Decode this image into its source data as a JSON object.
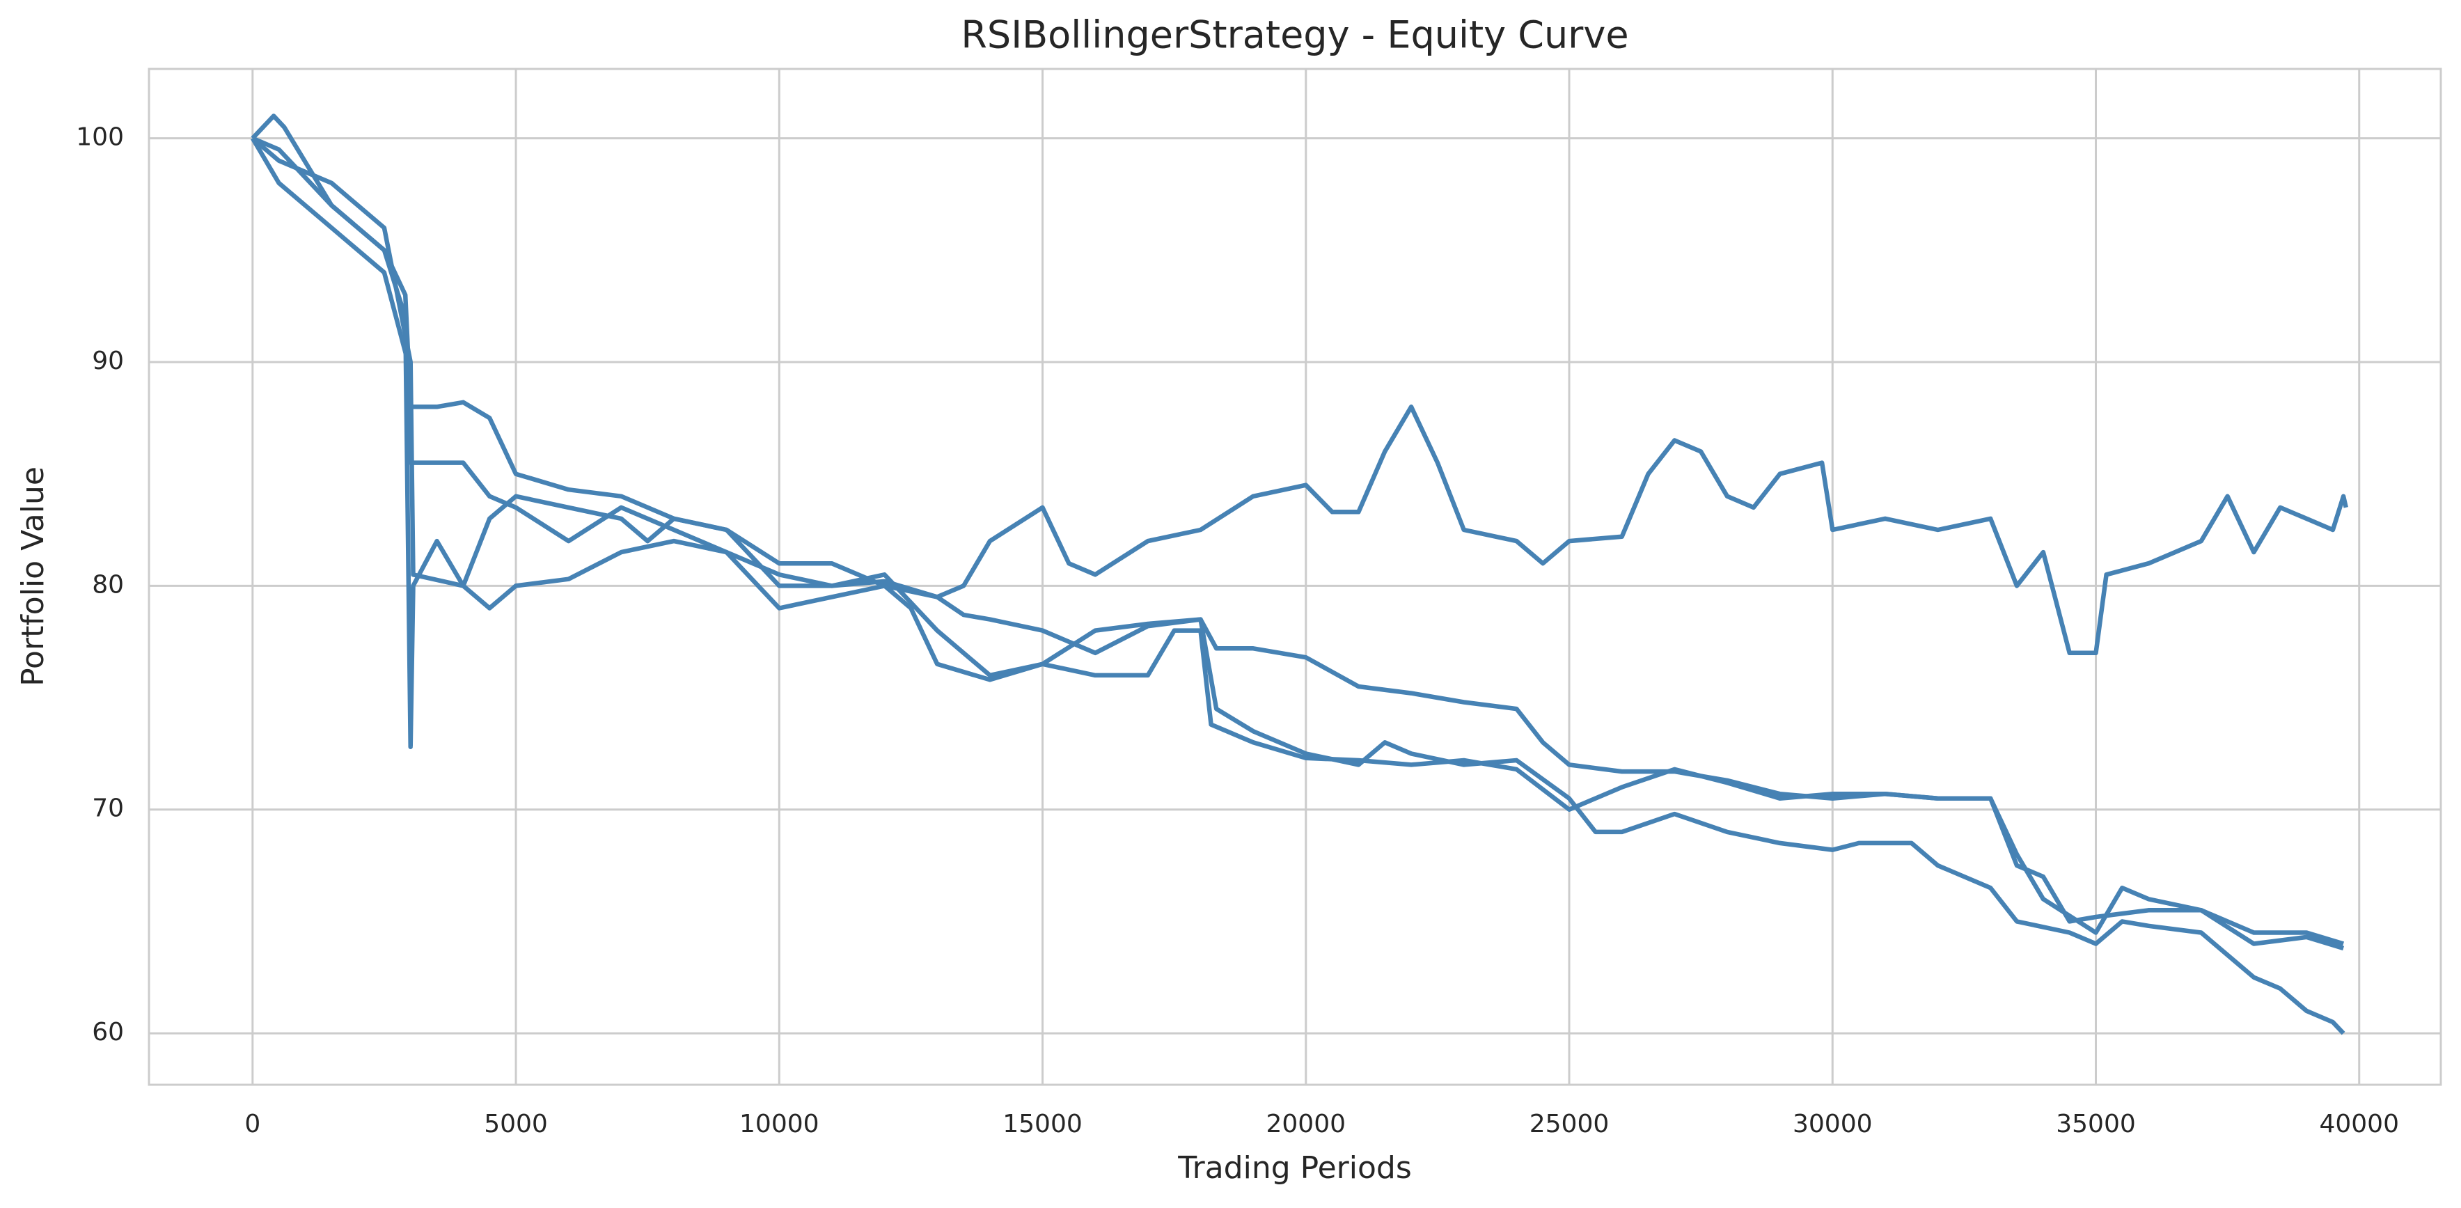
{
  "chart_data": {
    "type": "line",
    "title": "RSIBollingerStrategy - Equity Curve",
    "xlabel": "Trading Periods",
    "ylabel": "Portfolio Value",
    "grid": true,
    "xlim": [
      -1967,
      41550
    ],
    "ylim": [
      57.7,
      103.1
    ],
    "xticks": [
      0,
      5000,
      10000,
      15000,
      20000,
      25000,
      30000,
      35000,
      40000
    ],
    "yticks": [
      60,
      70,
      80,
      90,
      100
    ],
    "series": [
      {
        "color": "#4682b4",
        "x": [
          0,
          500,
          1500,
          2500,
          2900,
          3000,
          3500,
          4000,
          4500,
          5000,
          6000,
          7000,
          8000,
          9000,
          10000,
          11000,
          12000,
          13000,
          13500,
          14000,
          15000,
          15500,
          16000,
          17000,
          18000,
          19000,
          20000,
          20500,
          21000,
          21500,
          22000,
          22500,
          23000,
          24000,
          24500,
          25000,
          26000,
          26500,
          27000,
          27500,
          28000,
          28500,
          29000,
          29800,
          30000,
          31000,
          32000,
          33000,
          33500,
          34000,
          34500,
          35000,
          35200,
          36000,
          37000,
          37500,
          38000,
          38500,
          39000,
          39500,
          39700,
          39750
        ],
        "values": [
          100,
          99.5,
          97,
          95,
          93,
          88,
          88,
          88.2,
          87.5,
          85,
          84.3,
          84,
          83,
          82.5,
          81,
          81,
          80,
          79.5,
          80,
          82,
          83.5,
          81,
          80.5,
          82,
          82.5,
          84,
          84.5,
          83.3,
          83.3,
          86,
          88,
          85.5,
          82.5,
          82,
          81,
          82,
          82.2,
          85,
          86.5,
          86,
          84,
          83.5,
          85,
          85.5,
          82.5,
          83,
          82.5,
          83,
          80,
          81.5,
          77,
          77,
          80.5,
          81,
          82,
          84,
          81.5,
          83.5,
          83,
          82.5,
          84,
          83.5
        ]
      },
      {
        "color": "#4682b4",
        "x": [
          0,
          500,
          1500,
          2500,
          3000,
          3050,
          4000,
          4500,
          5000,
          6000,
          7000,
          8000,
          9000,
          10000,
          11000,
          12000,
          13000,
          13500,
          14000,
          15000,
          16000,
          17000,
          18000,
          18300,
          19000,
          20000,
          21000,
          22000,
          23000,
          24000,
          24500,
          25000,
          26000,
          27000,
          28000,
          29000,
          30000,
          31000,
          32000,
          33000,
          33500,
          34000,
          34500,
          35000,
          36000,
          37000,
          38000,
          39000,
          39700
        ],
        "values": [
          100,
          99,
          98,
          96,
          90,
          80.5,
          80,
          79,
          80,
          80.3,
          81.5,
          82,
          81.5,
          80.5,
          80,
          80.2,
          79.5,
          78.7,
          78.5,
          78,
          77,
          78.2,
          78.5,
          77.2,
          77.2,
          76.8,
          75.5,
          75.2,
          74.8,
          74.5,
          73,
          72,
          71.7,
          71.7,
          71.3,
          70.7,
          70.5,
          70.7,
          70.5,
          70.5,
          67.5,
          67,
          65,
          65.2,
          65.5,
          65.5,
          64.5,
          64.5,
          64
        ]
      },
      {
        "color": "#4682b4",
        "x": [
          0,
          500,
          1500,
          2500,
          2950,
          3000,
          4000,
          4500,
          5000,
          6000,
          7000,
          8000,
          9000,
          10000,
          11000,
          12000,
          12500,
          13000,
          14000,
          15000,
          16000,
          17000,
          18000,
          18300,
          19000,
          20000,
          21000,
          21500,
          22000,
          23000,
          24000,
          25000,
          25500,
          26000,
          27000,
          28000,
          29000,
          30000,
          30500,
          31500,
          32000,
          33000,
          33500,
          34500,
          35000,
          35500,
          36000,
          37000,
          37500,
          38000,
          38500,
          39000,
          39500,
          39700
        ],
        "values": [
          100,
          98,
          96,
          94,
          90,
          85.5,
          85.5,
          84,
          83.5,
          82,
          83.5,
          82.5,
          81.5,
          79,
          79.5,
          80,
          79,
          76.5,
          75.8,
          76.5,
          78,
          78.3,
          78.5,
          74.5,
          73.5,
          72.5,
          72,
          73,
          72.5,
          72,
          72.2,
          70.5,
          69,
          69,
          69.8,
          69,
          68.5,
          68.2,
          68.5,
          68.5,
          67.5,
          66.5,
          65,
          64.5,
          64,
          65,
          64.8,
          64.5,
          63.5,
          62.5,
          62,
          61,
          60.5,
          60
        ]
      },
      {
        "color": "#4682b4",
        "x": [
          0,
          400,
          600,
          1500,
          2500,
          2900,
          3000,
          3050,
          3500,
          4000,
          4500,
          5000,
          6000,
          7000,
          7500,
          8000,
          9000,
          10000,
          11000,
          12000,
          13000,
          14000,
          15000,
          16000,
          17000,
          17500,
          18000,
          18200,
          19000,
          20000,
          21000,
          22000,
          23000,
          24000,
          25000,
          26000,
          27000,
          28000,
          29000,
          30000,
          31000,
          32000,
          33000,
          33500,
          34000,
          35000,
          35500,
          36000,
          37000,
          38000,
          39000,
          39700
        ],
        "values": [
          100,
          101,
          100.5,
          97,
          95,
          92,
          72.8,
          80,
          82,
          80,
          83,
          84,
          83.5,
          83,
          82,
          83,
          82.5,
          80,
          80,
          80.5,
          78,
          76,
          76.5,
          76,
          76,
          78,
          78,
          73.8,
          73,
          72.3,
          72.2,
          72,
          72.2,
          71.8,
          70,
          71,
          71.8,
          71.2,
          70.5,
          70.7,
          70.7,
          70.5,
          70.5,
          68,
          66,
          64.5,
          66.5,
          66,
          65.5,
          64,
          64.3,
          63.8
        ]
      }
    ]
  }
}
